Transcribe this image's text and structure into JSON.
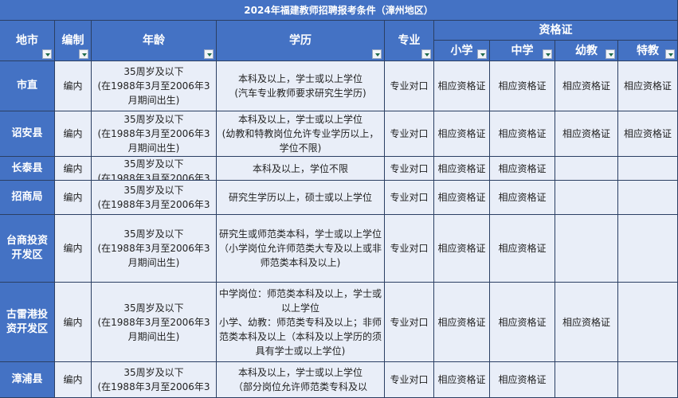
{
  "title": "2024年福建教师招聘报考条件（漳州地区）",
  "headers": {
    "city": "地市",
    "bianzhi": "编制",
    "age": "年龄",
    "education": "学历",
    "major": "专业",
    "cert": "资格证",
    "primary": "小学",
    "middle": "中学",
    "kinder": "幼教",
    "special": "特教"
  },
  "rows": [
    {
      "city": "市直",
      "bianzhi": "编内",
      "age": "35周岁及以下\n(在1988年3月至2006年3月期间出生)",
      "education": "本科及以上，学士或以上学位\n(汽车专业教师要求研究生学历)",
      "major": "专业对口",
      "primary": "相应资格证",
      "middle": "相应资格证",
      "kinder": "相应资格证",
      "special": "相应资格证"
    },
    {
      "city": "诏安县",
      "bianzhi": "编内",
      "age": "35周岁及以下\n(在1988年3月至2006年3月期间出生)",
      "education": "本科及以上，学士或以上学位\n(幼教和特教岗位允许专业学历以上，学位不限)",
      "major": "专业对口",
      "primary": "相应资格证",
      "middle": "相应资格证",
      "kinder": "相应资格证",
      "special": "相应资格证"
    },
    {
      "city": "长泰县",
      "bianzhi": "编内",
      "age": "35周岁及以下\n(在1988年3月至2006年3",
      "education": "本科及以上，学位不限",
      "major": "专业对口",
      "primary": "相应资格证",
      "middle": "相应资格证",
      "kinder": "",
      "special": ""
    },
    {
      "city": "招商局",
      "bianzhi": "编内",
      "age": "35周岁及以下\n(在1988年3月至2006年3",
      "education": "研究生学历以上，硕士或以上学位",
      "major": "专业对口",
      "primary": "相应资格证",
      "middle": "相应资格证",
      "kinder": "",
      "special": ""
    },
    {
      "city": "台商投资开发区",
      "bianzhi": "编内",
      "age": "35周岁及以下\n(在1988年3月至2006年3月期间出生)",
      "education": "研究生或师范类本科，学士或以上学位（小学岗位允许师范类大专及以上或非师范类本科及以上)",
      "major": "专业对口",
      "primary": "相应资格证",
      "middle": "相应资格证",
      "kinder": "",
      "special": ""
    },
    {
      "city": "古雷港投资开发区",
      "bianzhi": "编内",
      "age": "35周岁及以下\n(在1988年3月至2006年3月期间出生)",
      "education": "中学岗位：师范类本科及以上，学士或以上学位\n小学、幼教：师范类专科及以上；非师范类本科及以上（本科及以上学历的须具有学士或以上学位)",
      "major": "专业对口",
      "primary": "相应资格证",
      "middle": "相应资格证",
      "kinder": "相应资格证",
      "special": ""
    },
    {
      "city": "漳浦县",
      "bianzhi": "编内",
      "age": "35周岁及以下\n(在1988年3月至2006年3",
      "education": "本科及以上，学士或以上学位\n（部分岗位允许师范类专科及以",
      "major": "专业对口",
      "primary": "相应资格证",
      "middle": "相应资格证",
      "kinder": "",
      "special": ""
    }
  ],
  "colors": {
    "header": "#4472c4",
    "body": "#e9eef8",
    "filter_arrow": "#1f6b4b"
  }
}
